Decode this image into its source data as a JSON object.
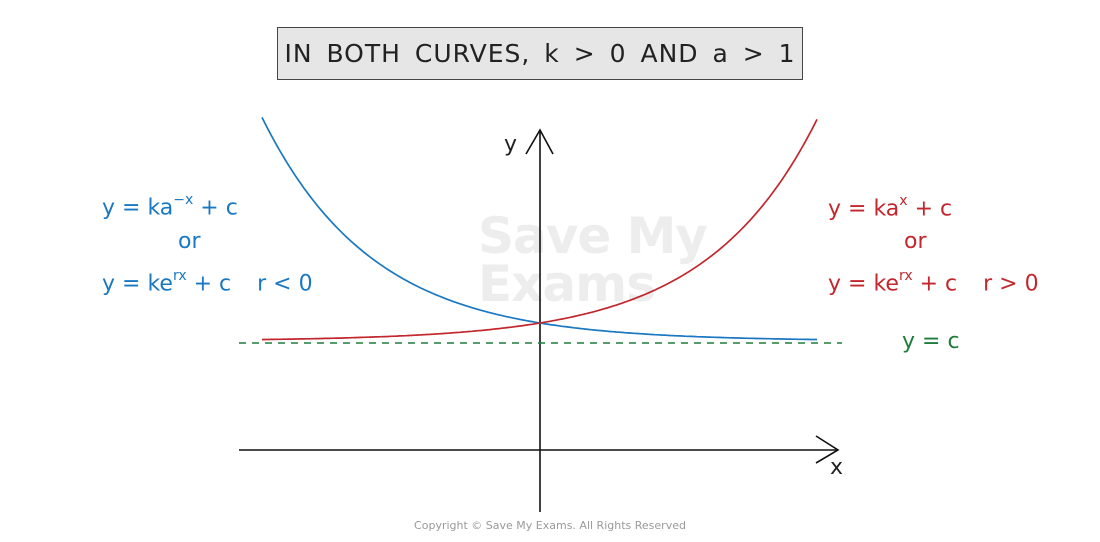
{
  "title": "IN BOTH CURVES, k > 0 AND a > 1",
  "watermark": {
    "line1": "Save My",
    "line2": "Exams"
  },
  "left_equations": {
    "line1_base": "y = ka",
    "line1_exp": "−x",
    "line1_tail": " + c",
    "or": "or",
    "line3_base": "y = ke",
    "line3_exp": "rx",
    "line3_tail": " + c",
    "condition": "r < 0",
    "color": "#1a78c2"
  },
  "right_equations": {
    "line1_base": "y = ka",
    "line1_exp": "x",
    "line1_tail": " + c",
    "or": "or",
    "line3_base": "y = ke",
    "line3_exp": "rx",
    "line3_tail": " + c",
    "condition": "r > 0",
    "color": "#c1272d"
  },
  "asymptote_label": "y = c",
  "asymptote_color": "#1e7d3a",
  "axes": {
    "x_label": "x",
    "y_label": "y"
  },
  "copyright": "Copyright © Save My Exams. All Rights Reserved"
}
